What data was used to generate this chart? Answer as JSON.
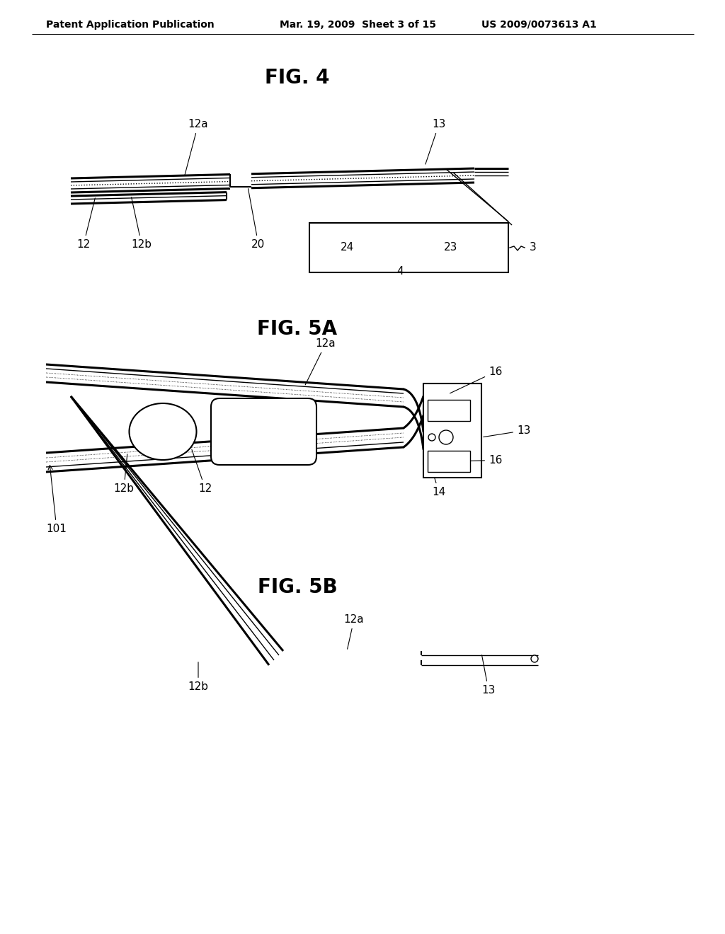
{
  "bg_color": "#ffffff",
  "header_left": "Patent Application Publication",
  "header_mid": "Mar. 19, 2009  Sheet 3 of 15",
  "header_right": "US 2009/0073613 A1",
  "fig4_title": "FIG. 4",
  "fig5a_title": "FIG. 5A",
  "fig5b_title": "FIG. 5B",
  "line_color": "#000000"
}
